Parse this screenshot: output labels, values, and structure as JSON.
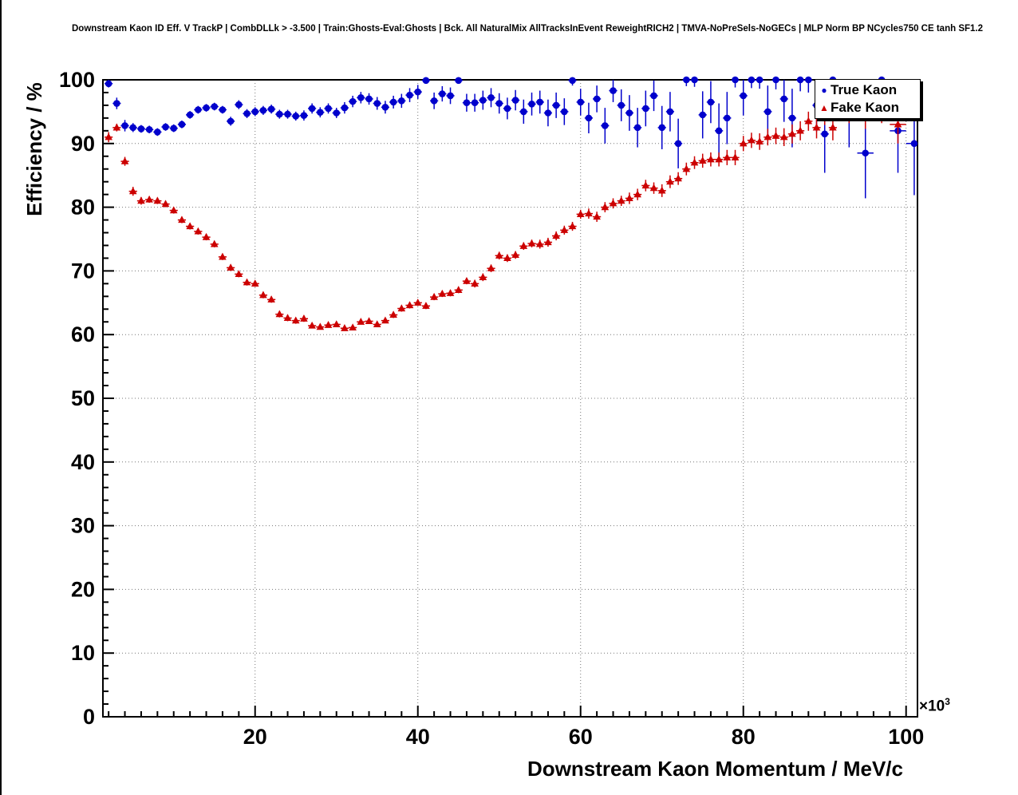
{
  "chart_data": {
    "type": "scatter",
    "title": "Downstream Kaon ID Eff. V TrackP | CombDLLk > -3.500 | Train:Ghosts-Eval:Ghosts | Bck. All NaturalMix AllTracksInEvent ReweightRICH2 | TMVA-NoPreSels-NoGECs | MLP Norm BP NCycles750 CE tanh SF1.2",
    "xlabel": "Downstream Kaon Momentum / MeV/c",
    "ylabel": "Efficiency / %",
    "xlim": [
      1.3,
      101.4
    ],
    "ylim": [
      0,
      100
    ],
    "xticks": [
      20,
      40,
      60,
      80,
      100
    ],
    "yticks": [
      0,
      10,
      20,
      30,
      40,
      50,
      60,
      70,
      80,
      90,
      100
    ],
    "x_minor_step": 2,
    "y_minor_step": 2,
    "grid": "dotted",
    "legend_position": "top-right",
    "x_unit_exponent": {
      "base": "×10",
      "exp": "3"
    },
    "frame_color": "#000000",
    "series": [
      {
        "name": "True Kaon",
        "color": "#0000cc",
        "marker": "circle",
        "points": [
          [
            2,
            99.4,
            0.6
          ],
          [
            3,
            96.3,
            0.9
          ],
          [
            4,
            92.8,
            0.9
          ],
          [
            5,
            92.5,
            0.7
          ],
          [
            6,
            92.3,
            0.6
          ],
          [
            7,
            92.2,
            0.6
          ],
          [
            8,
            91.8,
            0.6
          ],
          [
            9,
            92.6,
            0.6
          ],
          [
            10,
            92.4,
            0.6
          ],
          [
            11,
            93.0,
            0.6
          ],
          [
            12,
            94.5,
            0.6
          ],
          [
            13,
            95.3,
            0.6
          ],
          [
            14,
            95.6,
            0.6
          ],
          [
            15,
            95.8,
            0.6
          ],
          [
            16,
            95.3,
            0.6
          ],
          [
            17,
            93.5,
            0.7
          ],
          [
            18,
            96.1,
            0.7
          ],
          [
            19,
            94.7,
            0.7
          ],
          [
            20,
            95.0,
            0.7
          ],
          [
            21,
            95.2,
            0.7
          ],
          [
            22,
            95.4,
            0.7
          ],
          [
            23,
            94.6,
            0.7
          ],
          [
            24,
            94.6,
            0.7
          ],
          [
            25,
            94.3,
            0.7
          ],
          [
            26,
            94.4,
            0.8
          ],
          [
            27,
            95.5,
            0.8
          ],
          [
            28,
            94.9,
            0.8
          ],
          [
            29,
            95.5,
            0.8
          ],
          [
            30,
            94.8,
            0.8
          ],
          [
            31,
            95.6,
            0.9
          ],
          [
            32,
            96.6,
            0.9
          ],
          [
            33,
            97.2,
            0.9
          ],
          [
            34,
            97.0,
            0.9
          ],
          [
            35,
            96.3,
            1.0
          ],
          [
            36,
            95.7,
            1.0
          ],
          [
            37,
            96.5,
            1.0
          ],
          [
            38,
            96.7,
            1.1
          ],
          [
            39,
            97.6,
            1.1
          ],
          [
            40,
            98.1,
            1.1
          ],
          [
            41,
            99.9,
            0.4
          ],
          [
            42,
            96.7,
            1.3
          ],
          [
            43,
            97.8,
            1.2
          ],
          [
            44,
            97.5,
            1.3
          ],
          [
            45,
            99.9,
            0.5
          ],
          [
            46,
            96.4,
            1.4
          ],
          [
            47,
            96.4,
            1.4
          ],
          [
            48,
            96.8,
            1.5
          ],
          [
            49,
            97.2,
            1.5
          ],
          [
            50,
            96.3,
            1.6
          ],
          [
            51,
            95.5,
            1.7
          ],
          [
            52,
            96.8,
            1.6
          ],
          [
            53,
            95.0,
            1.9
          ],
          [
            54,
            96.2,
            1.8
          ],
          [
            55,
            96.5,
            1.8
          ],
          [
            56,
            94.8,
            2.1
          ],
          [
            57,
            96.0,
            2.0
          ],
          [
            58,
            95.0,
            2.1
          ],
          [
            59,
            99.9,
            0.8
          ],
          [
            60,
            96.5,
            2.1
          ],
          [
            61,
            94.0,
            2.4
          ],
          [
            62,
            97.0,
            2.1
          ],
          [
            63,
            92.8,
            2.8
          ],
          [
            64,
            98.3,
            1.8
          ],
          [
            65,
            96.0,
            2.5
          ],
          [
            66,
            94.8,
            2.8
          ],
          [
            67,
            92.5,
            3.1
          ],
          [
            68,
            95.5,
            2.8
          ],
          [
            69,
            97.5,
            2.4
          ],
          [
            70,
            92.5,
            3.4
          ],
          [
            71,
            95.0,
            3.1
          ],
          [
            72,
            90.0,
            3.9
          ],
          [
            73,
            100.0,
            1.0
          ],
          [
            74,
            100.0,
            1.1
          ],
          [
            75,
            94.5,
            3.7
          ],
          [
            76,
            96.5,
            3.3
          ],
          [
            77,
            92.0,
            4.3
          ],
          [
            78,
            94.0,
            4.1
          ],
          [
            79,
            100.0,
            1.2
          ],
          [
            80,
            97.5,
            3.1
          ],
          [
            81,
            100.0,
            1.3
          ],
          [
            82,
            100.0,
            1.4
          ],
          [
            83,
            95.0,
            4.1
          ],
          [
            84,
            100.0,
            1.5
          ],
          [
            85,
            97.0,
            3.6
          ],
          [
            86,
            94.0,
            4.6
          ],
          [
            87,
            100.0,
            1.8
          ],
          [
            88,
            100.0,
            2.0
          ],
          [
            89,
            96.0,
            4.1
          ],
          [
            90,
            91.5,
            6.1
          ],
          [
            91,
            100.0,
            2.2
          ],
          [
            93,
            95.0,
            5.6
          ],
          [
            95,
            88.5,
            7.1
          ],
          [
            97,
            100.0,
            2.5
          ],
          [
            99,
            92.0,
            6.6
          ],
          [
            101,
            90.0,
            8.1
          ]
        ]
      },
      {
        "name": "Fake Kaon",
        "color": "#cc0000",
        "marker": "triangle",
        "points": [
          [
            2,
            91.0,
            0.8
          ],
          [
            3,
            92.5,
            0.6
          ],
          [
            4,
            87.2,
            0.7
          ],
          [
            5,
            82.5,
            0.7
          ],
          [
            6,
            81.0,
            0.6
          ],
          [
            7,
            81.2,
            0.5
          ],
          [
            8,
            81.0,
            0.5
          ],
          [
            9,
            80.5,
            0.5
          ],
          [
            10,
            79.5,
            0.5
          ],
          [
            11,
            78.0,
            0.5
          ],
          [
            12,
            77.0,
            0.5
          ],
          [
            13,
            76.2,
            0.5
          ],
          [
            14,
            75.3,
            0.5
          ],
          [
            15,
            74.2,
            0.5
          ],
          [
            16,
            72.2,
            0.5
          ],
          [
            17,
            70.5,
            0.5
          ],
          [
            18,
            69.5,
            0.5
          ],
          [
            19,
            68.2,
            0.5
          ],
          [
            20,
            68.0,
            0.5
          ],
          [
            21,
            66.2,
            0.5
          ],
          [
            22,
            65.5,
            0.5
          ],
          [
            23,
            63.2,
            0.5
          ],
          [
            24,
            62.6,
            0.5
          ],
          [
            25,
            62.2,
            0.5
          ],
          [
            26,
            62.5,
            0.5
          ],
          [
            27,
            61.4,
            0.4
          ],
          [
            28,
            61.2,
            0.4
          ],
          [
            29,
            61.5,
            0.4
          ],
          [
            30,
            61.6,
            0.4
          ],
          [
            31,
            61.0,
            0.4
          ],
          [
            32,
            61.1,
            0.4
          ],
          [
            33,
            62.0,
            0.4
          ],
          [
            34,
            62.1,
            0.4
          ],
          [
            35,
            61.6,
            0.4
          ],
          [
            36,
            62.2,
            0.4
          ],
          [
            37,
            63.1,
            0.5
          ],
          [
            38,
            64.1,
            0.5
          ],
          [
            39,
            64.6,
            0.5
          ],
          [
            40,
            65.0,
            0.5
          ],
          [
            41,
            64.5,
            0.5
          ],
          [
            42,
            65.9,
            0.5
          ],
          [
            43,
            66.4,
            0.5
          ],
          [
            44,
            66.5,
            0.5
          ],
          [
            45,
            67.0,
            0.5
          ],
          [
            46,
            68.4,
            0.5
          ],
          [
            47,
            68.0,
            0.6
          ],
          [
            48,
            69.0,
            0.6
          ],
          [
            49,
            70.4,
            0.6
          ],
          [
            50,
            72.4,
            0.6
          ],
          [
            51,
            72.0,
            0.6
          ],
          [
            52,
            72.5,
            0.6
          ],
          [
            53,
            73.9,
            0.6
          ],
          [
            54,
            74.3,
            0.6
          ],
          [
            55,
            74.2,
            0.7
          ],
          [
            56,
            74.5,
            0.7
          ],
          [
            57,
            75.5,
            0.7
          ],
          [
            58,
            76.4,
            0.7
          ],
          [
            59,
            77.0,
            0.7
          ],
          [
            60,
            78.9,
            0.7
          ],
          [
            61,
            79.0,
            0.8
          ],
          [
            62,
            78.5,
            0.8
          ],
          [
            63,
            80.0,
            0.8
          ],
          [
            64,
            80.6,
            0.8
          ],
          [
            65,
            81.0,
            0.8
          ],
          [
            66,
            81.4,
            0.9
          ],
          [
            67,
            82.0,
            0.9
          ],
          [
            68,
            83.4,
            0.9
          ],
          [
            69,
            83.0,
            0.9
          ],
          [
            70,
            82.6,
            1.0
          ],
          [
            71,
            84.0,
            1.0
          ],
          [
            72,
            84.5,
            1.0
          ],
          [
            73,
            86.0,
            1.0
          ],
          [
            74,
            87.0,
            1.0
          ],
          [
            75,
            87.3,
            1.1
          ],
          [
            76,
            87.5,
            1.1
          ],
          [
            77,
            87.5,
            1.1
          ],
          [
            78,
            87.8,
            1.2
          ],
          [
            79,
            87.8,
            1.2
          ],
          [
            80,
            90.0,
            1.2
          ],
          [
            81,
            90.5,
            1.2
          ],
          [
            82,
            90.3,
            1.3
          ],
          [
            83,
            91.0,
            1.3
          ],
          [
            84,
            91.2,
            1.3
          ],
          [
            85,
            91.0,
            1.4
          ],
          [
            86,
            91.5,
            1.5
          ],
          [
            87,
            92.0,
            1.5
          ],
          [
            88,
            93.5,
            1.5
          ],
          [
            89,
            92.5,
            1.7
          ],
          [
            90,
            94.5,
            1.6
          ],
          [
            91,
            92.5,
            2.0
          ],
          [
            93,
            95.0,
            1.8
          ],
          [
            95,
            94.5,
            2.2
          ],
          [
            97,
            95.5,
            2.3
          ],
          [
            99,
            93.0,
            3.0
          ]
        ]
      }
    ]
  }
}
